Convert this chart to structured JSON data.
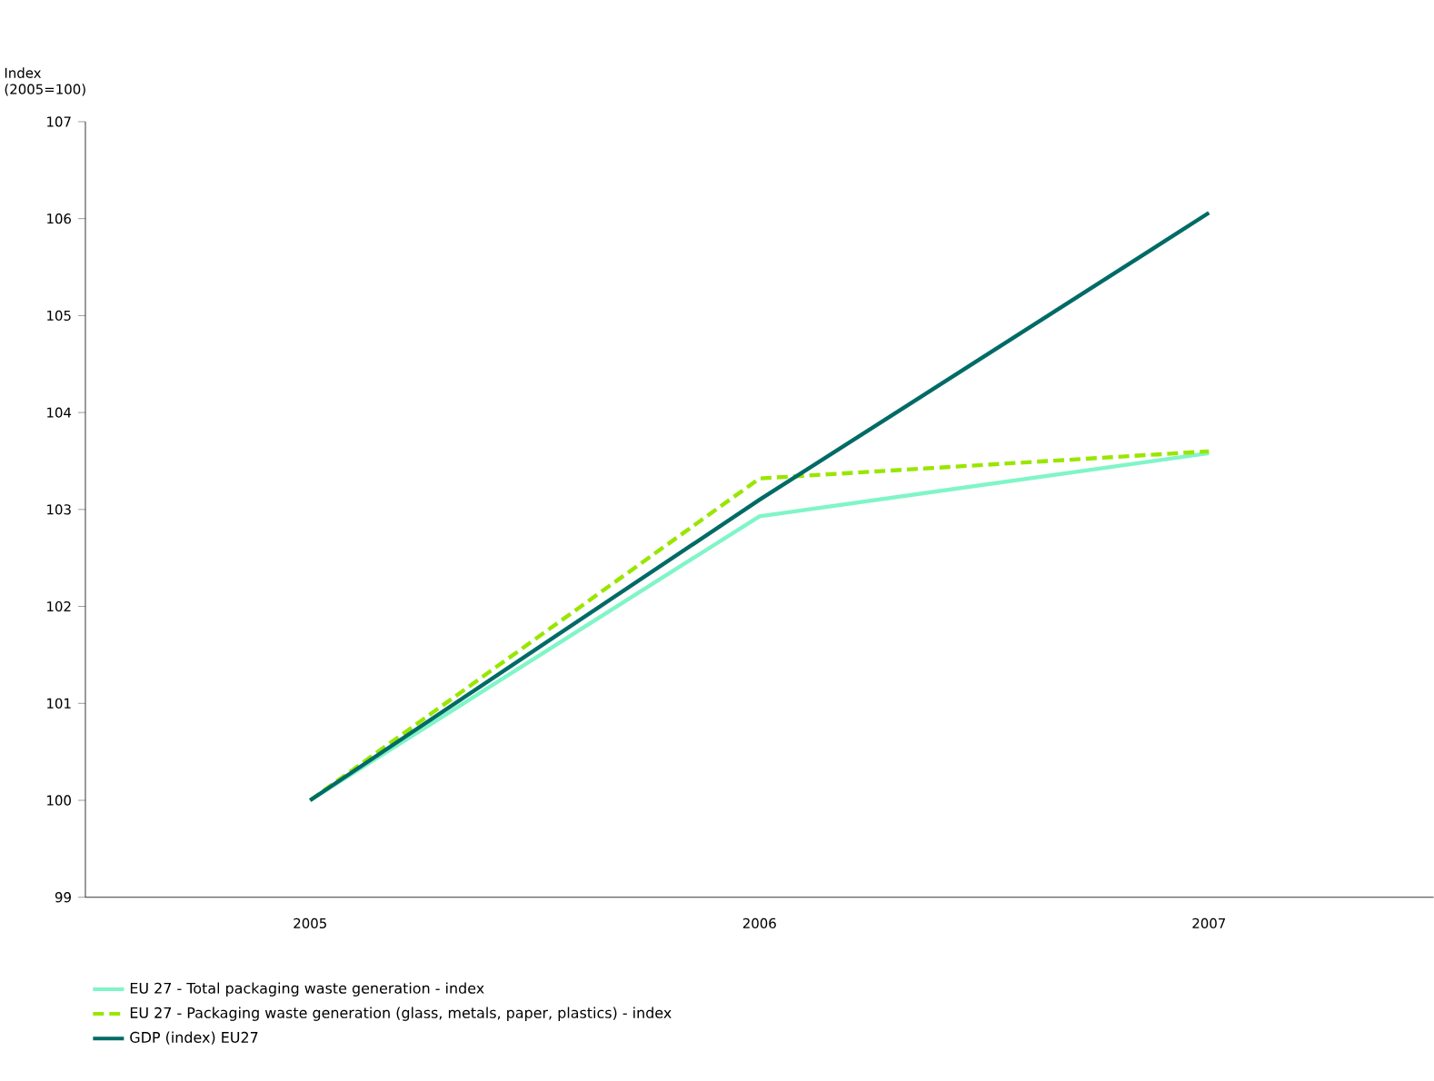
{
  "chart_data": {
    "type": "line",
    "ylabel": "Index (2005=100)",
    "categories": [
      "2005",
      "2006",
      "2007"
    ],
    "series": [
      {
        "name": "EU 27 - Total packaging waste generation - index",
        "color": "#80f5c8",
        "values": [
          100,
          102.93,
          103.58
        ]
      },
      {
        "name": "EU 27 - Packaging waste generation (glass, metals, paper, plastics) - index",
        "color": "#99e600",
        "values": [
          100,
          103.32,
          103.6
        ],
        "line_style": "dashed"
      },
      {
        "name": "GDP (index) EU27",
        "color": "#006b66",
        "values": [
          100,
          103.1,
          106.06
        ]
      }
    ],
    "ylim": [
      99,
      107
    ],
    "yticks": [
      99,
      100,
      101,
      102,
      103,
      104,
      105,
      106,
      107
    ],
    "legend": "bottom"
  }
}
